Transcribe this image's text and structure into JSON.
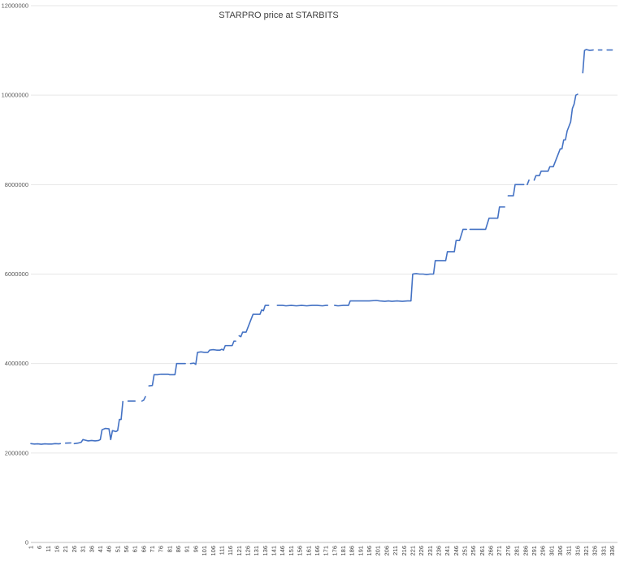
{
  "chart_data": {
    "type": "line",
    "title": "STARPRO price at STARBITS",
    "xlabel": "",
    "ylabel": "",
    "ylim": [
      0,
      12000000
    ],
    "xlim": [
      1,
      339
    ],
    "yticks": [
      0,
      2000000,
      4000000,
      6000000,
      8000000,
      10000000,
      12000000
    ],
    "ytick_labels": [
      "0",
      "2000000",
      "4000000",
      "6000000",
      "8000000",
      "10000000",
      "12000000"
    ],
    "xtick_labels": [
      "1",
      "6",
      "11",
      "16",
      "21",
      "26",
      "31",
      "36",
      "41",
      "46",
      "51",
      "56",
      "61",
      "66",
      "71",
      "76",
      "81",
      "86",
      "91",
      "96",
      "101",
      "106",
      "111",
      "116",
      "121",
      "126",
      "131",
      "136",
      "141",
      "146",
      "151",
      "156",
      "161",
      "166",
      "171",
      "176",
      "181",
      "186",
      "191",
      "196",
      "201",
      "206",
      "211",
      "216",
      "221",
      "226",
      "231",
      "236",
      "241",
      "246",
      "251",
      "256",
      "261",
      "266",
      "271",
      "276",
      "281",
      "286",
      "291",
      "296",
      "301",
      "306",
      "311",
      "316",
      "321",
      "326",
      "331",
      "336"
    ],
    "grid": true,
    "legend": "none",
    "series": [
      {
        "color": "#4472c4",
        "segments": [
          [
            [
              1,
              2210000
            ],
            [
              3,
              2200000
            ],
            [
              5,
              2205000
            ],
            [
              7,
              2195000
            ],
            [
              9,
              2205000
            ],
            [
              11,
              2200000
            ],
            [
              13,
              2200000
            ],
            [
              15,
              2210000
            ],
            [
              17,
              2205000
            ],
            [
              18,
              2210000
            ]
          ],
          [
            [
              21,
              2220000
            ],
            [
              24,
              2225000
            ]
          ],
          [
            [
              26,
              2210000
            ],
            [
              28,
              2220000
            ],
            [
              30,
              2240000
            ],
            [
              31,
              2300000
            ],
            [
              32,
              2290000
            ],
            [
              34,
              2270000
            ],
            [
              36,
              2280000
            ],
            [
              38,
              2270000
            ],
            [
              40,
              2280000
            ],
            [
              41,
              2300000
            ],
            [
              42,
              2520000
            ],
            [
              44,
              2550000
            ],
            [
              46,
              2540000
            ],
            [
              47,
              2300000
            ],
            [
              48,
              2500000
            ],
            [
              50,
              2480000
            ],
            [
              51,
              2500000
            ],
            [
              52,
              2750000
            ],
            [
              53,
              2750000
            ],
            [
              54,
              3150000
            ]
          ],
          [
            [
              57,
              3160000
            ],
            [
              61,
              3160000
            ]
          ],
          [
            [
              65,
              3160000
            ],
            [
              66,
              3180000
            ],
            [
              67,
              3260000
            ]
          ],
          [
            [
              69,
              3500000
            ],
            [
              71,
              3510000
            ],
            [
              72,
              3750000
            ],
            [
              74,
              3750000
            ],
            [
              76,
              3760000
            ],
            [
              80,
              3760000
            ],
            [
              81,
              3750000
            ],
            [
              84,
              3750000
            ],
            [
              85,
              4000000
            ],
            [
              88,
              4000000
            ],
            [
              90,
              4000000
            ]
          ],
          [
            [
              93,
              4000000
            ],
            [
              95,
              4010000
            ],
            [
              96,
              3980000
            ],
            [
              97,
              4250000
            ],
            [
              99,
              4260000
            ],
            [
              101,
              4250000
            ],
            [
              103,
              4250000
            ],
            [
              104,
              4300000
            ],
            [
              106,
              4310000
            ],
            [
              108,
              4300000
            ],
            [
              110,
              4300000
            ],
            [
              111,
              4320000
            ],
            [
              112,
              4300000
            ],
            [
              113,
              4400000
            ],
            [
              115,
              4400000
            ],
            [
              117,
              4400000
            ],
            [
              118,
              4500000
            ],
            [
              119,
              4500000
            ]
          ],
          [
            [
              121,
              4620000
            ],
            [
              122,
              4600000
            ],
            [
              123,
              4700000
            ],
            [
              125,
              4700000
            ],
            [
              126,
              4800000
            ],
            [
              127,
              4900000
            ],
            [
              128,
              5000000
            ],
            [
              129,
              5100000
            ],
            [
              132,
              5100000
            ],
            [
              133,
              5100000
            ],
            [
              134,
              5200000
            ],
            [
              135,
              5180000
            ],
            [
              136,
              5300000
            ],
            [
              138,
              5300000
            ]
          ],
          [
            [
              143,
              5300000
            ],
            [
              146,
              5300000
            ],
            [
              148,
              5290000
            ],
            [
              151,
              5300000
            ],
            [
              154,
              5290000
            ],
            [
              157,
              5300000
            ],
            [
              160,
              5290000
            ],
            [
              163,
              5300000
            ],
            [
              166,
              5300000
            ],
            [
              169,
              5290000
            ],
            [
              171,
              5300000
            ],
            [
              172,
              5300000
            ]
          ],
          [
            [
              176,
              5300000
            ],
            [
              178,
              5290000
            ],
            [
              181,
              5300000
            ],
            [
              184,
              5300000
            ],
            [
              185,
              5400000
            ],
            [
              188,
              5400000
            ],
            [
              192,
              5400000
            ],
            [
              196,
              5400000
            ],
            [
              200,
              5410000
            ],
            [
              202,
              5400000
            ],
            [
              205,
              5390000
            ],
            [
              207,
              5400000
            ],
            [
              209,
              5390000
            ],
            [
              212,
              5400000
            ],
            [
              215,
              5390000
            ],
            [
              218,
              5400000
            ],
            [
              220,
              5400000
            ],
            [
              221,
              6000000
            ],
            [
              223,
              6010000
            ],
            [
              225,
              6000000
            ],
            [
              227,
              6000000
            ],
            [
              229,
              5990000
            ],
            [
              231,
              6000000
            ],
            [
              233,
              6000000
            ],
            [
              234,
              6300000
            ],
            [
              236,
              6300000
            ],
            [
              239,
              6300000
            ],
            [
              240,
              6300000
            ],
            [
              241,
              6500000
            ],
            [
              243,
              6500000
            ],
            [
              245,
              6500000
            ],
            [
              246,
              6750000
            ],
            [
              248,
              6750000
            ],
            [
              250,
              7000000
            ],
            [
              252,
              7000000
            ]
          ],
          [
            [
              254,
              7000000
            ],
            [
              257,
              7000000
            ],
            [
              260,
              7000000
            ],
            [
              263,
              7000000
            ],
            [
              265,
              7250000
            ],
            [
              268,
              7250000
            ],
            [
              270,
              7250000
            ],
            [
              271,
              7500000
            ],
            [
              273,
              7500000
            ],
            [
              274,
              7500000
            ]
          ],
          [
            [
              276,
              7750000
            ],
            [
              279,
              7750000
            ],
            [
              280,
              8000000
            ],
            [
              282,
              8000000
            ],
            [
              285,
              8000000
            ]
          ],
          [
            [
              287,
              8000000
            ],
            [
              288,
              8100000
            ]
          ],
          [
            [
              291,
              8100000
            ],
            [
              292,
              8200000
            ],
            [
              294,
              8200000
            ],
            [
              295,
              8300000
            ],
            [
              297,
              8300000
            ],
            [
              299,
              8300000
            ],
            [
              300,
              8400000
            ],
            [
              302,
              8400000
            ],
            [
              303,
              8500000
            ],
            [
              304,
              8600000
            ],
            [
              305,
              8700000
            ],
            [
              306,
              8800000
            ],
            [
              307,
              8800000
            ],
            [
              308,
              9000000
            ],
            [
              309,
              9000000
            ],
            [
              310,
              9200000
            ],
            [
              311,
              9300000
            ],
            [
              312,
              9400000
            ],
            [
              313,
              9700000
            ],
            [
              314,
              9800000
            ],
            [
              315,
              10000000
            ],
            [
              316,
              10020000
            ]
          ],
          [
            [
              319,
              10500000
            ],
            [
              320,
              11000000
            ],
            [
              321,
              11020000
            ],
            [
              323,
              11000000
            ],
            [
              325,
              11010000
            ]
          ],
          [
            [
              328,
              11010000
            ],
            [
              330,
              11010000
            ]
          ],
          [
            [
              333,
              11010000
            ],
            [
              336,
              11010000
            ]
          ]
        ]
      }
    ]
  }
}
